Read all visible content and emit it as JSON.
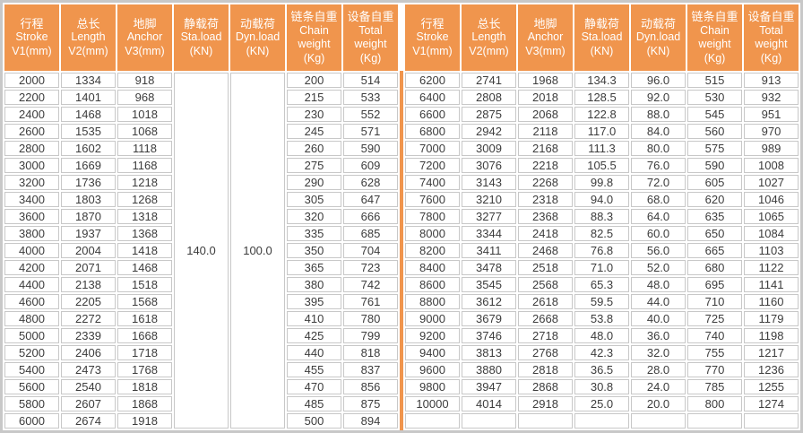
{
  "colors": {
    "header_bg": "#F0954D",
    "header_text": "#FFFFFF",
    "divider": "#F0954D",
    "grid": "#C8C8C8",
    "body_text": "#3C3C3C"
  },
  "table_left": {
    "headers": [
      {
        "lines": [
          "行程",
          "Stroke",
          "V1(mm)"
        ]
      },
      {
        "lines": [
          "总长",
          "Length",
          "V2(mm)"
        ]
      },
      {
        "lines": [
          "地脚",
          "Anchor",
          "V3(mm)"
        ]
      },
      {
        "lines": [
          "静载荷",
          "Sta.load",
          "(KN)"
        ]
      },
      {
        "lines": [
          "动载荷",
          "Dyn.load",
          "(KN)"
        ]
      },
      {
        "lines": [
          "链条自重",
          "Chain",
          "weight",
          "(Kg)"
        ]
      },
      {
        "lines": [
          "设备自重",
          "Total",
          "weight",
          "(Kg)"
        ]
      }
    ],
    "spans": {
      "0,3": 21,
      "0,4": 21
    },
    "rows": [
      [
        "2000",
        "1334",
        "918",
        "140.0",
        "100.0",
        "200",
        "514"
      ],
      [
        "2200",
        "1401",
        "968",
        "@",
        "@",
        "215",
        "533"
      ],
      [
        "2400",
        "1468",
        "1018",
        "@",
        "@",
        "230",
        "552"
      ],
      [
        "2600",
        "1535",
        "1068",
        "@",
        "@",
        "245",
        "571"
      ],
      [
        "2800",
        "1602",
        "1118",
        "@",
        "@",
        "260",
        "590"
      ],
      [
        "3000",
        "1669",
        "1168",
        "@",
        "@",
        "275",
        "609"
      ],
      [
        "3200",
        "1736",
        "1218",
        "@",
        "@",
        "290",
        "628"
      ],
      [
        "3400",
        "1803",
        "1268",
        "@",
        "@",
        "305",
        "647"
      ],
      [
        "3600",
        "1870",
        "1318",
        "@",
        "@",
        "320",
        "666"
      ],
      [
        "3800",
        "1937",
        "1368",
        "@",
        "@",
        "335",
        "685"
      ],
      [
        "4000",
        "2004",
        "1418",
        "@",
        "@",
        "350",
        "704"
      ],
      [
        "4200",
        "2071",
        "1468",
        "@",
        "@",
        "365",
        "723"
      ],
      [
        "4400",
        "2138",
        "1518",
        "@",
        "@",
        "380",
        "742"
      ],
      [
        "4600",
        "2205",
        "1568",
        "@",
        "@",
        "395",
        "761"
      ],
      [
        "4800",
        "2272",
        "1618",
        "@",
        "@",
        "410",
        "780"
      ],
      [
        "5000",
        "2339",
        "1668",
        "@",
        "@",
        "425",
        "799"
      ],
      [
        "5200",
        "2406",
        "1718",
        "@",
        "@",
        "440",
        "818"
      ],
      [
        "5400",
        "2473",
        "1768",
        "@",
        "@",
        "455",
        "837"
      ],
      [
        "5600",
        "2540",
        "1818",
        "@",
        "@",
        "470",
        "856"
      ],
      [
        "5800",
        "2607",
        "1868",
        "@",
        "@",
        "485",
        "875"
      ],
      [
        "6000",
        "2674",
        "1918",
        "@",
        "@",
        "500",
        "894"
      ]
    ]
  },
  "table_right": {
    "headers": [
      {
        "lines": [
          "行程",
          "Stroke",
          "V1(mm)"
        ]
      },
      {
        "lines": [
          "总长",
          "Length",
          "V2(mm)"
        ]
      },
      {
        "lines": [
          "地脚",
          "Anchor",
          "V3(mm)"
        ]
      },
      {
        "lines": [
          "静载荷",
          "Sta.load",
          "(KN)"
        ]
      },
      {
        "lines": [
          "动载荷",
          "Dyn.load",
          "(KN)"
        ]
      },
      {
        "lines": [
          "链条自重",
          "Chain",
          "weight",
          "(Kg)"
        ]
      },
      {
        "lines": [
          "设备自重",
          "Total",
          "weight",
          "(Kg)"
        ]
      }
    ],
    "spans": {},
    "rows": [
      [
        "6200",
        "2741",
        "1968",
        "134.3",
        "96.0",
        "515",
        "913"
      ],
      [
        "6400",
        "2808",
        "2018",
        "128.5",
        "92.0",
        "530",
        "932"
      ],
      [
        "6600",
        "2875",
        "2068",
        "122.8",
        "88.0",
        "545",
        "951"
      ],
      [
        "6800",
        "2942",
        "2118",
        "117.0",
        "84.0",
        "560",
        "970"
      ],
      [
        "7000",
        "3009",
        "2168",
        "111.3",
        "80.0",
        "575",
        "989"
      ],
      [
        "7200",
        "3076",
        "2218",
        "105.5",
        "76.0",
        "590",
        "1008"
      ],
      [
        "7400",
        "3143",
        "2268",
        "99.8",
        "72.0",
        "605",
        "1027"
      ],
      [
        "7600",
        "3210",
        "2318",
        "94.0",
        "68.0",
        "620",
        "1046"
      ],
      [
        "7800",
        "3277",
        "2368",
        "88.3",
        "64.0",
        "635",
        "1065"
      ],
      [
        "8000",
        "3344",
        "2418",
        "82.5",
        "60.0",
        "650",
        "1084"
      ],
      [
        "8200",
        "3411",
        "2468",
        "76.8",
        "56.0",
        "665",
        "1103"
      ],
      [
        "8400",
        "3478",
        "2518",
        "71.0",
        "52.0",
        "680",
        "1122"
      ],
      [
        "8600",
        "3545",
        "2568",
        "65.3",
        "48.0",
        "695",
        "1141"
      ],
      [
        "8800",
        "3612",
        "2618",
        "59.5",
        "44.0",
        "710",
        "1160"
      ],
      [
        "9000",
        "3679",
        "2668",
        "53.8",
        "40.0",
        "725",
        "1179"
      ],
      [
        "9200",
        "3746",
        "2718",
        "48.0",
        "36.0",
        "740",
        "1198"
      ],
      [
        "9400",
        "3813",
        "2768",
        "42.3",
        "32.0",
        "755",
        "1217"
      ],
      [
        "9600",
        "3880",
        "2818",
        "36.5",
        "28.0",
        "770",
        "1236"
      ],
      [
        "9800",
        "3947",
        "2868",
        "30.8",
        "24.0",
        "785",
        "1255"
      ],
      [
        "10000",
        "4014",
        "2918",
        "25.0",
        "20.0",
        "800",
        "1274"
      ],
      [
        "",
        "",
        "",
        "",
        "",
        "",
        ""
      ]
    ]
  }
}
